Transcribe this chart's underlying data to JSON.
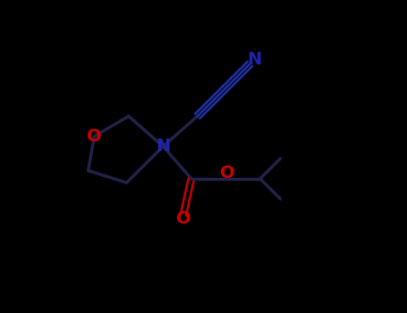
{
  "title": "",
  "bg_color": "#000000",
  "bond_color": "#000000",
  "atom_colors": {
    "N": "#2222aa",
    "O": "#cc0000",
    "C": "#000000"
  },
  "line_width": 2.5,
  "figsize": [
    4.55,
    3.5
  ],
  "dpi": 100
}
